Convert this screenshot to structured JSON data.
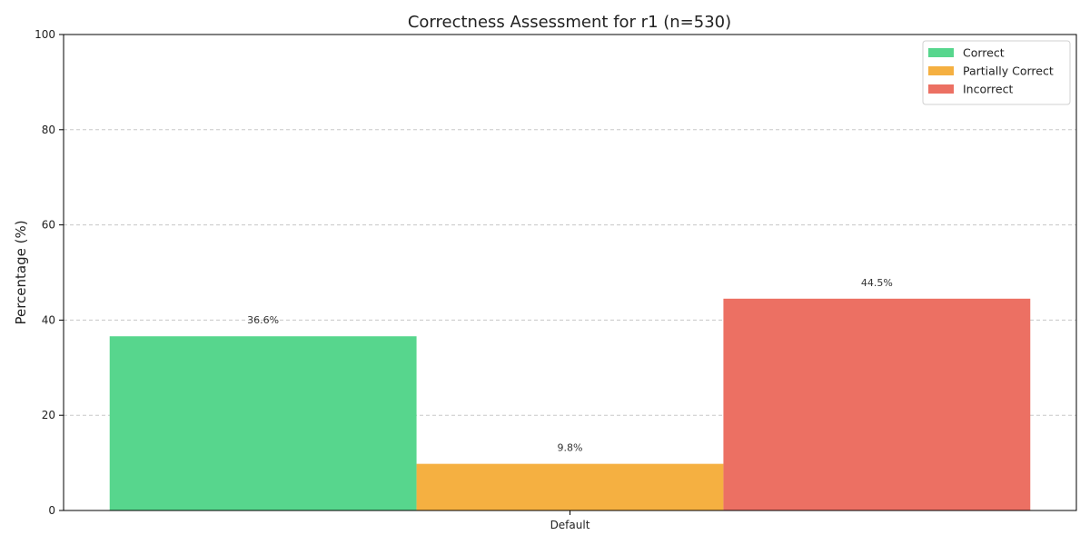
{
  "chart_data": {
    "type": "bar",
    "title": "Correctness Assessment for r1 (n=530)",
    "xlabel": "",
    "ylabel": "Percentage (%)",
    "ylim": [
      0,
      100
    ],
    "yticks": [
      0,
      20,
      40,
      60,
      80,
      100
    ],
    "categories": [
      "Default"
    ],
    "grid": true,
    "grid_axis": "y",
    "legend_position": "top-right",
    "series": [
      {
        "name": "Correct",
        "values": [
          36.6
        ],
        "labels": [
          "36.6%"
        ],
        "color": "#57d68d"
      },
      {
        "name": "Partially Correct",
        "values": [
          9.8
        ],
        "labels": [
          "9.8%"
        ],
        "color": "#f5b041"
      },
      {
        "name": "Incorrect",
        "values": [
          44.5
        ],
        "labels": [
          "44.5%"
        ],
        "color": "#ec7063"
      }
    ]
  }
}
